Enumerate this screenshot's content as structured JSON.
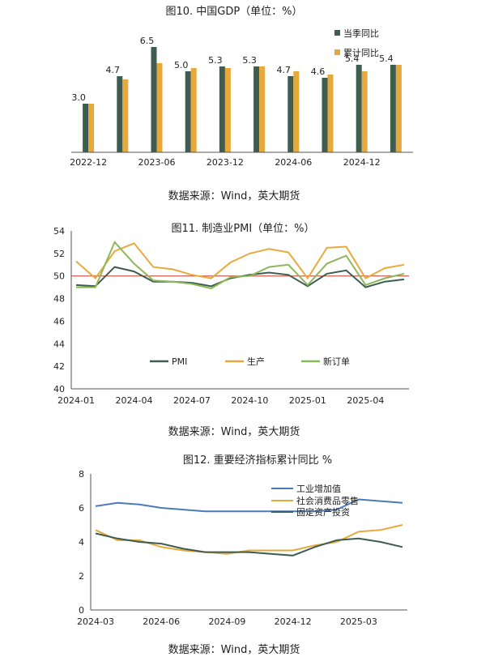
{
  "chart_data": [
    {
      "type": "bar",
      "title": "图10. 中国GDP（单位：%）",
      "source": "数据来源：Wind，英大期货",
      "categories": [
        "2022-12",
        "2023-03",
        "2023-06",
        "2023-09",
        "2023-12",
        "2024-03",
        "2024-06",
        "2024-09",
        "2024-12",
        "2025-03"
      ],
      "x_tick_labels": [
        "2022-12",
        "2023-06",
        "2023-12",
        "2024-06",
        "2024-12"
      ],
      "series": [
        {
          "name": "当季同比",
          "color": "#3e5c50",
          "values": [
            3.0,
            4.7,
            6.5,
            5.0,
            5.3,
            5.3,
            4.7,
            4.6,
            5.4,
            5.4
          ],
          "labels": [
            "3.0",
            "4.7",
            "6.5",
            "5.0",
            "5.3",
            "5.3",
            "4.7",
            "4.6",
            "5.4",
            "5.4"
          ]
        },
        {
          "name": "累计同比",
          "color": "#e8a93c",
          "values": [
            3.0,
            4.5,
            5.5,
            5.2,
            5.2,
            5.3,
            5.0,
            4.8,
            5.0,
            5.4
          ]
        }
      ],
      "ylim": [
        0,
        7
      ],
      "legend": "top-right"
    },
    {
      "type": "line",
      "title": "图11. 制造业PMI（单位：%）",
      "source": "数据来源：Wind，英大期货",
      "x": [
        "2024-01",
        "2024-02",
        "2024-03",
        "2024-04",
        "2024-05",
        "2024-06",
        "2024-07",
        "2024-08",
        "2024-09",
        "2024-10",
        "2024-11",
        "2024-12",
        "2025-01",
        "2025-02",
        "2025-03",
        "2025-04",
        "2025-05",
        "2025-06"
      ],
      "x_tick_labels": [
        "2024-01",
        "2024-04",
        "2024-07",
        "2024-10",
        "2025-01",
        "2025-04"
      ],
      "y_ticks": [
        "40",
        "42",
        "44",
        "46",
        "48",
        "50",
        "52",
        "54"
      ],
      "ylim": [
        40,
        54
      ],
      "reference_line": 50,
      "series": [
        {
          "name": "PMI",
          "color": "#3e5c50",
          "values": [
            49.2,
            49.1,
            50.8,
            50.4,
            49.5,
            49.5,
            49.4,
            49.1,
            49.8,
            50.1,
            50.3,
            50.1,
            49.1,
            50.2,
            50.5,
            49.0,
            49.5,
            49.7
          ]
        },
        {
          "name": "生产",
          "color": "#e8a93c",
          "values": [
            51.3,
            49.8,
            52.2,
            52.9,
            50.8,
            50.6,
            50.1,
            49.8,
            51.2,
            52.0,
            52.4,
            52.1,
            49.8,
            52.5,
            52.6,
            49.8,
            50.7,
            51.0
          ]
        },
        {
          "name": "新订单",
          "color": "#8db85a",
          "values": [
            49.0,
            49.0,
            53.0,
            51.1,
            49.6,
            49.5,
            49.3,
            48.9,
            49.9,
            50.0,
            50.8,
            51.0,
            49.2,
            51.1,
            51.8,
            49.2,
            49.8,
            50.2
          ]
        }
      ],
      "legend": "inside-bottom"
    },
    {
      "type": "line",
      "title": "图12. 重要经济指标累计同比 %",
      "source": "数据来源：Wind，英大期货",
      "x": [
        "2024-03",
        "2024-04",
        "2024-05",
        "2024-06",
        "2024-07",
        "2024-08",
        "2024-09",
        "2024-10",
        "2024-11",
        "2024-12",
        "2025-01",
        "2025-02",
        "2025-03",
        "2025-04",
        "2025-05"
      ],
      "x_tick_labels": [
        "2024-03",
        "2024-06",
        "2024-09",
        "2024-12",
        "2025-03"
      ],
      "y_ticks": [
        "0",
        "2",
        "4",
        "6",
        "8"
      ],
      "ylim": [
        0,
        8
      ],
      "series": [
        {
          "name": "工业增加值",
          "color": "#4a7ab8",
          "values": [
            6.1,
            6.3,
            6.2,
            6.0,
            5.9,
            5.8,
            5.8,
            5.8,
            5.8,
            5.8,
            5.8,
            5.9,
            6.5,
            6.4,
            6.3
          ]
        },
        {
          "name": "社会消费品零售",
          "color": "#e8a93c",
          "values": [
            4.7,
            4.1,
            4.1,
            3.7,
            3.5,
            3.4,
            3.3,
            3.5,
            3.5,
            3.5,
            3.8,
            4.0,
            4.6,
            4.7,
            5.0
          ]
        },
        {
          "name": "固定资产投资",
          "color": "#3e5c50",
          "values": [
            4.5,
            4.2,
            4.0,
            3.9,
            3.6,
            3.4,
            3.4,
            3.4,
            3.3,
            3.2,
            3.7,
            4.1,
            4.2,
            4.0,
            3.7
          ]
        }
      ],
      "legend": "top-right"
    }
  ]
}
